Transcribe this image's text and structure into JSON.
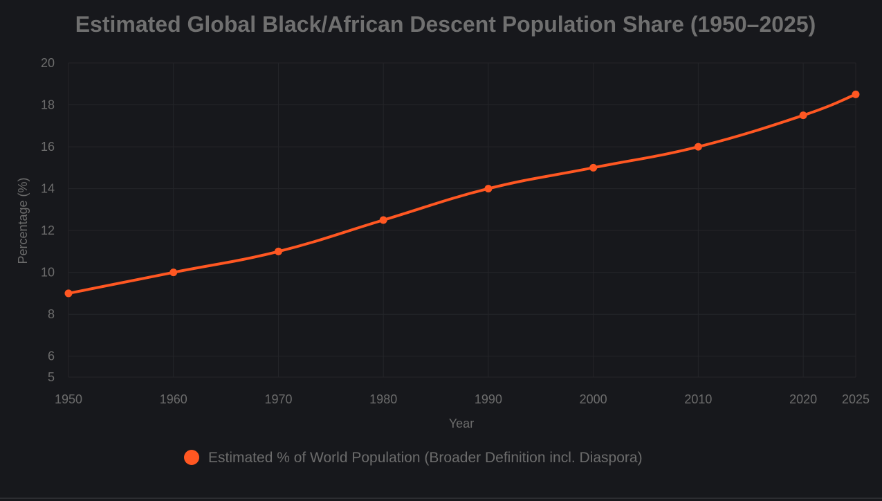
{
  "chart_data": {
    "type": "line",
    "title": "Estimated Global Black/African Descent Population Share (1950–2025)",
    "xlabel": "Year",
    "ylabel": "Percentage (%)",
    "x": [
      1950,
      1960,
      1970,
      1980,
      1990,
      2000,
      2010,
      2020,
      2025
    ],
    "x_tick_labels": [
      "1950",
      "1960",
      "1970",
      "1980",
      "1990",
      "2000",
      "2010",
      "2020",
      "2025"
    ],
    "y_ticks": [
      5,
      6,
      8,
      10,
      12,
      14,
      16,
      18,
      20
    ],
    "ylim": [
      5,
      20
    ],
    "xlim": [
      1950,
      2025
    ],
    "grid": true,
    "legend_position": "bottom-center",
    "series": [
      {
        "name": "Estimated % of World Population (Broader Definition incl. Diaspora)",
        "values": [
          9,
          10,
          11,
          12.5,
          14,
          15,
          16,
          17.5,
          18.5
        ],
        "color": "#ff5722"
      }
    ]
  }
}
